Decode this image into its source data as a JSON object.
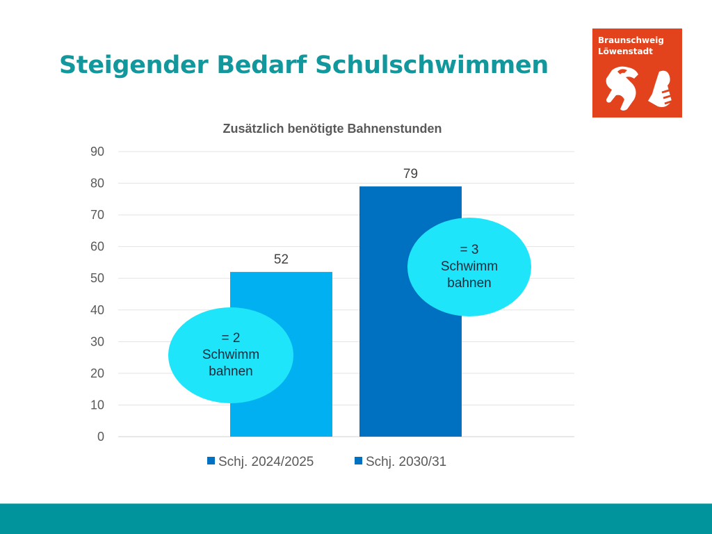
{
  "slide": {
    "title": "Steigender Bedarf Schulschwimmen",
    "logo": {
      "line1": "Braunschweig",
      "line2": "Löwenstadt",
      "color": "#e2421c"
    },
    "footer_color": "#02949c",
    "title_color": "#11979c"
  },
  "chart_data": {
    "type": "bar",
    "title": "Zusätzlich benötigte Bahnenstunden",
    "xlabel": "",
    "ylabel": "",
    "ylim": [
      0,
      90
    ],
    "yticks": [
      0,
      10,
      20,
      30,
      40,
      50,
      60,
      70,
      80,
      90
    ],
    "grid": true,
    "legend_position": "bottom",
    "series": [
      {
        "name": "Schj. 2024/2025",
        "values": [
          52
        ],
        "color": "#00b0f0",
        "legend_color": "#0070c0"
      },
      {
        "name": "Schj. 2030/31",
        "values": [
          79
        ],
        "color": "#0070c0",
        "legend_color": "#0070c0"
      }
    ],
    "data_labels": [
      "52",
      "79"
    ],
    "annotations": [
      {
        "lines": [
          "= 2",
          "Schwimm",
          "bahnen"
        ],
        "series": 0
      },
      {
        "lines": [
          "= 3",
          "Schwimm",
          "bahnen"
        ],
        "series": 1
      }
    ],
    "annotation_color": "#1ee5fa"
  }
}
